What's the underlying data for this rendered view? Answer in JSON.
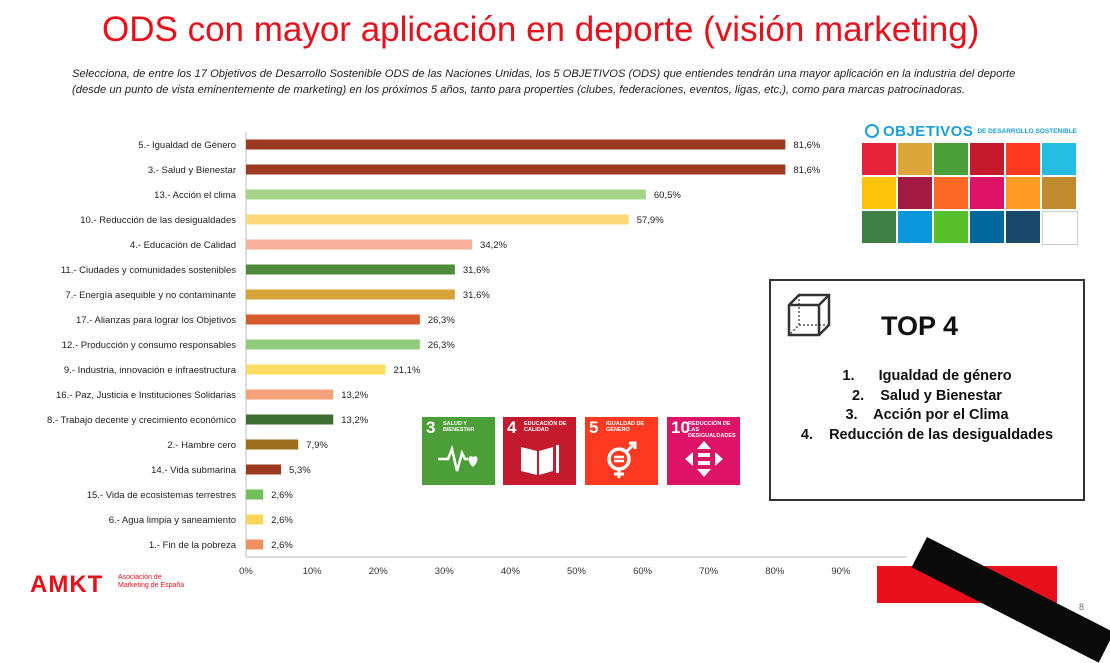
{
  "title": "ODS con mayor aplicación en deporte (visión marketing)",
  "subtitle": "Selecciona, de entre los 17 Objetivos de Desarrollo Sostenible ODS de las Naciones Unidas, los 5 OBJETIVOS (ODS) que entiendes tendrán una mayor aplicación en la industria del deporte (desde un punto de vista eminentemente de marketing) en los próximos 5 años, tanto para properties (clubes, federaciones, eventos, ligas, etc,), como para marcas patrocinadoras.",
  "chart_data": {
    "type": "bar",
    "orientation": "horizontal",
    "categories": [
      "5.- Igualdad de Género",
      "3.- Salud y Bienestar",
      "13.- Acción el clima",
      "10.- Reducción de las desigualdades",
      "4.- Educación de Calidad",
      "11.- Ciudades y comunidades sostenibles",
      "7.- Energía asequible y no contaminante",
      "17.- Alianzas para lograr los Objetivos",
      "12.- Producción y consumo responsables",
      "9.- Industria, innovación e infraestructura",
      "16.- Paz, Justicia e Instituciones Solidarias",
      "8.- Trabajo decente y crecimiento económico",
      "2.- Hambre cero",
      "14.- Vida submarina",
      "15.- Vida de ecosistemas terrestres",
      "6.- Agua limpia y saneamiento",
      "1.- Fin de la pobreza"
    ],
    "values": [
      81.6,
      81.6,
      60.5,
      57.9,
      34.2,
      31.6,
      31.6,
      26.3,
      26.3,
      21.1,
      13.2,
      13.2,
      7.9,
      5.3,
      2.6,
      2.6,
      2.6
    ],
    "value_labels": [
      "81,6%",
      "81,6%",
      "60,5%",
      "57,9%",
      "34,2%",
      "31,6%",
      "31,6%",
      "26,3%",
      "26,3%",
      "21,1%",
      "13,2%",
      "13,2%",
      "7,9%",
      "5,3%",
      "2,6%",
      "2,6%",
      "2,6%"
    ],
    "colors": [
      "#9b3a1e",
      "#9b3a1e",
      "#a5d38a",
      "#fcd97a",
      "#f9b09a",
      "#4e8a3a",
      "#d5a33a",
      "#d75a2b",
      "#8ccc7a",
      "#fcdc62",
      "#f4a07a",
      "#3f6e33",
      "#9b6f1e",
      "#9b3a1e",
      "#6fbf5a",
      "#fcd45a",
      "#f09060"
    ],
    "xlim": [
      0,
      100
    ],
    "x_ticks": [
      "0%",
      "10%",
      "20%",
      "30%",
      "40%",
      "50%",
      "60%",
      "70%",
      "80%",
      "90%",
      "100%"
    ],
    "grid": false,
    "xlabel": "",
    "ylabel": ""
  },
  "top4": {
    "title": "TOP 4",
    "items": [
      "1.      Igualdad de género",
      "2.    Salud y Bienestar",
      "3.    Acción por el Clima",
      "4.    Reducción de las desigualdades"
    ]
  },
  "sdg_logo": {
    "word": "OBJETIVOS",
    "small": "DE DESARROLLO SOSTENIBLE",
    "colors": [
      "#e5243b",
      "#dda63a",
      "#4c9f38",
      "#c5192d",
      "#ff3a21",
      "#26bde2",
      "#fcc30b",
      "#a21942",
      "#fd6925",
      "#dd1367",
      "#fd9d24",
      "#bf8b2e",
      "#3f7e44",
      "#0a97d9",
      "#56c02b",
      "#00689d",
      "#19486a",
      "#ffffff"
    ]
  },
  "tiles": [
    {
      "num": "3",
      "label": "SALUD Y BIENESTAR",
      "color": "#4c9f38",
      "icon": "heartbeat-icon"
    },
    {
      "num": "4",
      "label": "EDUCACIÓN DE CALIDAD",
      "color": "#c5192d",
      "icon": "book-icon"
    },
    {
      "num": "5",
      "label": "IGUALDAD DE GÉNERO",
      "color": "#ff3a21",
      "icon": "gender-equality-icon"
    },
    {
      "num": "10",
      "label": "REDUCCIÓN DE LAS DESIGUALDADES",
      "color": "#dd1367",
      "icon": "reduced-inequality-icon"
    }
  ],
  "footer": {
    "brand": "AMKT",
    "org": "Asociación de Marketing de España",
    "page": "8"
  },
  "brand_color": "#e8101a"
}
